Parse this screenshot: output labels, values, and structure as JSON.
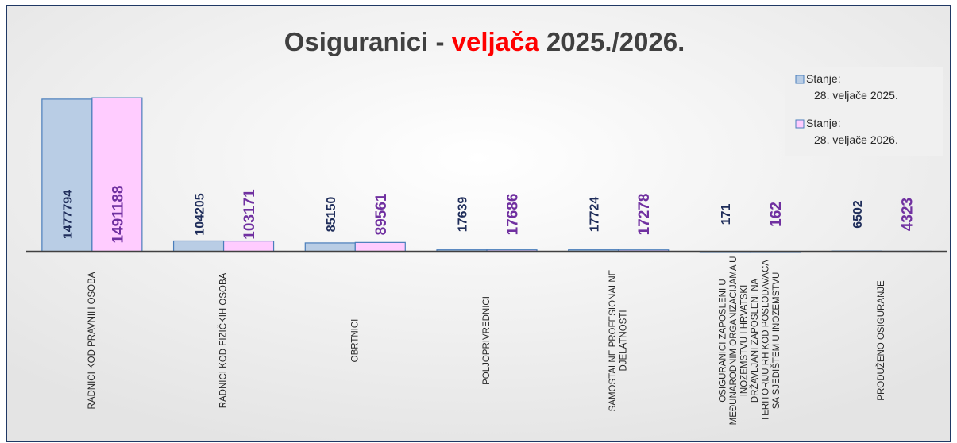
{
  "chart_data": {
    "type": "bar",
    "title_parts": [
      {
        "text": "Osiguranici - ",
        "color": "#404040"
      },
      {
        "text": "veljača",
        "color": "#ff0000"
      },
      {
        "text": " 2025./2026.",
        "color": "#404040"
      }
    ],
    "categories": [
      "RADNICI KOD PRAVNIH OSOBA",
      "RADNICI KOD FIZIČKIH OSOBA",
      "OBRTNICI",
      "POLJOPRIVREDNICI",
      "SAMOSTALNE PROFESIONALNE DJELATNOSTI",
      "OSIGURANICI ZAPOSLENI U MEĐUNARODNIM ORGANIZACIJAMA U INOZEMSTVU I HRVATSKI DRŽAVLJANI ZAPOSLENI NA TERITORIJU RH KOD POSLODAVACA SA SJEDIŠTEM U INOZEMSTVU",
      "PRODUŽENO OSIGURANJE"
    ],
    "series": [
      {
        "name": "Stanje: 28. veljače 2025.",
        "color": "#b9cde5",
        "label_color": "#1f2d5a",
        "values": [
          1477794,
          104205,
          85150,
          17639,
          17724,
          171,
          6502
        ]
      },
      {
        "name": "Stanje: 28. veljače 2026.",
        "color": "#ffccff",
        "label_color": "#7030a0",
        "values": [
          1491188,
          103171,
          89561,
          17686,
          17278,
          162,
          4323
        ]
      }
    ],
    "ylim": [
      0,
      1500000
    ],
    "grid": false,
    "legend": "upper right"
  }
}
